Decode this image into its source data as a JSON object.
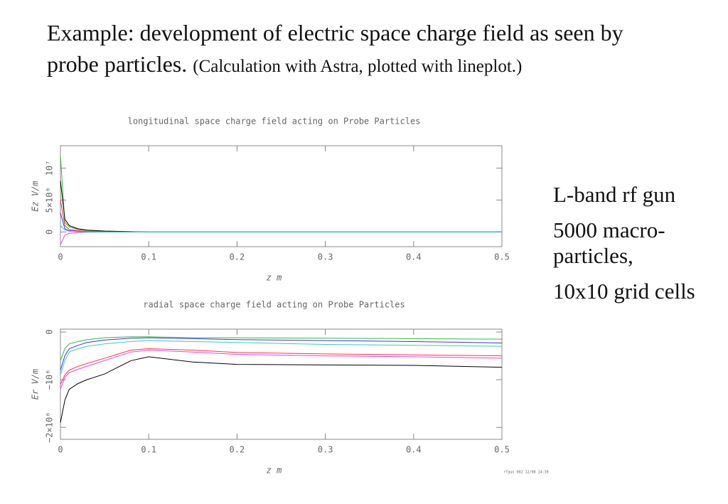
{
  "slide": {
    "title": "Example: development of electric space charge field as seen by probe particles.",
    "note": "(Calculation with Astra, plotted with lineplot.)",
    "bullets": [
      "L-band rf gun",
      "5000 macro-particles,",
      "10x10 grid cells"
    ],
    "stamp": "rfgun 002  12/08  14:39"
  },
  "chart_data": [
    {
      "type": "line",
      "title": "longitudinal space charge field acting on Probe Particles",
      "x_label": "z m",
      "y_label": "Ez V/m",
      "x": [
        0,
        0.005,
        0.01,
        0.02,
        0.03,
        0.05,
        0.08,
        0.1,
        0.15,
        0.2,
        0.3,
        0.4,
        0.5
      ],
      "xlim": [
        0,
        0.5
      ],
      "xticks": [
        0,
        0.1,
        0.2,
        0.3,
        0.4,
        0.5
      ],
      "ylim": [
        -2300000,
        13500000
      ],
      "yticks": [
        0,
        {
          "value": 5000000,
          "label": "5×10⁶"
        },
        {
          "value": 10000000,
          "label": "10⁷"
        }
      ],
      "series": [
        {
          "color": "#33bb33",
          "values": [
            12000000,
            1500000,
            800000,
            400000,
            250000,
            100000,
            50000,
            0,
            0,
            0,
            0,
            0,
            0
          ]
        },
        {
          "color": "#000000",
          "values": [
            8000000,
            2000000,
            1000000,
            500000,
            300000,
            150000,
            50000,
            0,
            0,
            0,
            0,
            0,
            0
          ]
        },
        {
          "color": "#ff33ff",
          "values": [
            -2000000,
            -500000,
            -200000,
            -100000,
            -50000,
            0,
            0,
            0,
            0,
            0,
            0,
            0,
            0
          ]
        },
        {
          "color": "#3333ff",
          "values": [
            3000000,
            500000,
            200000,
            100000,
            50000,
            0,
            0,
            0,
            0,
            0,
            0,
            0,
            0
          ]
        },
        {
          "color": "#ff3333",
          "values": [
            5000000,
            1000000,
            400000,
            200000,
            100000,
            50000,
            0,
            0,
            0,
            0,
            0,
            0,
            0
          ]
        },
        {
          "color": "#33cccc",
          "values": [
            1000000,
            300000,
            100000,
            50000,
            0,
            0,
            0,
            0,
            0,
            0,
            0,
            0,
            0
          ]
        }
      ]
    },
    {
      "type": "line",
      "title": "radial space charge field acting on Probe Particles",
      "x_label": "z m",
      "y_label": "Er V/m",
      "x": [
        0,
        0.005,
        0.01,
        0.02,
        0.03,
        0.05,
        0.08,
        0.1,
        0.15,
        0.2,
        0.3,
        0.4,
        0.5
      ],
      "xlim": [
        0,
        0.5
      ],
      "xticks": [
        0,
        0.1,
        0.2,
        0.3,
        0.4,
        0.5
      ],
      "ylim": [
        -2250000,
        60000
      ],
      "yticks": [
        0,
        {
          "value": -1000000,
          "label": "−10⁶"
        },
        {
          "value": -2000000,
          "label": "−2×10⁶"
        }
      ],
      "series": [
        {
          "color": "#000000",
          "values": [
            -1900000,
            -1430000,
            -1200000,
            -1080000,
            -1000000,
            -880000,
            -600000,
            -520000,
            -630000,
            -680000,
            -690000,
            -700000,
            -740000
          ]
        },
        {
          "color": "#ff33ff",
          "values": [
            -1200000,
            -950000,
            -850000,
            -780000,
            -720000,
            -600000,
            -420000,
            -380000,
            -420000,
            -470000,
            -500000,
            -520000,
            -550000
          ]
        },
        {
          "color": "#ff3333",
          "values": [
            -1100000,
            -900000,
            -800000,
            -720000,
            -660000,
            -550000,
            -380000,
            -350000,
            -380000,
            -430000,
            -460000,
            -480000,
            -500000
          ]
        },
        {
          "color": "#33cccc",
          "values": [
            -900000,
            -600000,
            -420000,
            -350000,
            -300000,
            -250000,
            -200000,
            -180000,
            -200000,
            -220000,
            -260000,
            -280000,
            -300000
          ]
        },
        {
          "color": "#3333ff",
          "values": [
            -800000,
            -500000,
            -350000,
            -280000,
            -220000,
            -170000,
            -130000,
            -120000,
            -140000,
            -160000,
            -180000,
            -200000,
            -230000
          ]
        },
        {
          "color": "#33bb33",
          "values": [
            -600000,
            -350000,
            -250000,
            -200000,
            -160000,
            -120000,
            -100000,
            -100000,
            -120000,
            -120000,
            -130000,
            -140000,
            -150000
          ]
        }
      ]
    }
  ]
}
